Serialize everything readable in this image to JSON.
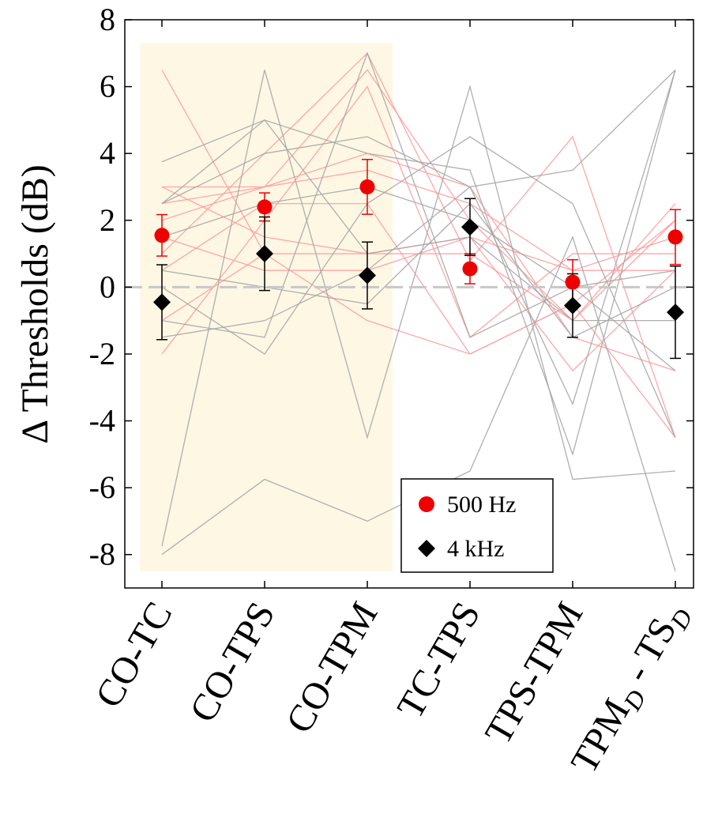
{
  "chart_data": {
    "type": "scatter",
    "ylabel": "Δ Thresholds (dB)",
    "ylim": [
      -9,
      8
    ],
    "yticks": [
      -8,
      -6,
      -4,
      -2,
      0,
      2,
      4,
      6,
      8
    ],
    "grid": false,
    "legend_position": "bottom-right",
    "categories": [
      {
        "main": "CO-TC",
        "sub": "",
        "tail": "",
        "sub2": ""
      },
      {
        "main": "CO-TPS",
        "sub": "",
        "tail": "",
        "sub2": ""
      },
      {
        "main": "CO-TPM",
        "sub": "",
        "tail": "",
        "sub2": ""
      },
      {
        "main": "TC-TPS",
        "sub": "",
        "tail": "",
        "sub2": ""
      },
      {
        "main": "TPS-TPM",
        "sub": "",
        "tail": "",
        "sub2": ""
      },
      {
        "main": "TPM",
        "sub": "D",
        "tail": " - TS",
        "sub2": "D"
      }
    ],
    "highlight_range": {
      "from_category": "CO-TC",
      "to_category": "CO-TPM",
      "y": [
        -8.5,
        7.3
      ],
      "color": "#fdf7e4"
    },
    "zero_line": {
      "y": 0,
      "color": "#c8c8c8"
    },
    "series": [
      {
        "name": "500 Hz",
        "marker": "circle",
        "color": "#ee0000",
        "errbar_color": "#ee0000",
        "mean": [
          1.55,
          2.4,
          3.0,
          0.55,
          0.15,
          1.5
        ],
        "err": [
          0.62,
          0.42,
          0.82,
          0.45,
          0.67,
          0.82
        ],
        "individual_color": "#ff9c9c",
        "individual": [
          [
            1.0,
            4.0,
            7.0,
            0.8,
            4.5,
            -4.5
          ],
          [
            2.0,
            3.0,
            6.5,
            2.0,
            -1.0,
            2.5
          ],
          [
            3.0,
            3.0,
            4.0,
            3.0,
            -1.5,
            -2.5
          ],
          [
            0.5,
            2.5,
            2.5,
            -2.0,
            -0.5,
            2.0
          ],
          [
            -2.0,
            2.0,
            6.0,
            -1.5,
            1.0,
            1.0
          ],
          [
            1.5,
            0.5,
            0.5,
            1.5,
            -2.5,
            0.5
          ],
          [
            6.5,
            1.0,
            -1.0,
            -2.0,
            -0.5,
            -4.5
          ],
          [
            3.0,
            1.5,
            1.0,
            1.0,
            -1.0,
            2.0
          ],
          [
            2.5,
            3.0,
            3.5,
            2.5,
            0.5,
            1.5
          ],
          [
            -1.0,
            1.0,
            1.0,
            1.5,
            0.5,
            0.5
          ]
        ]
      },
      {
        "name": "4 kHz",
        "marker": "diamond",
        "color": "#000000",
        "errbar_color": "#000000",
        "mean": [
          -0.45,
          1.0,
          0.35,
          1.8,
          -0.55,
          -0.75
        ],
        "err": [
          1.12,
          1.1,
          1.0,
          0.85,
          0.95,
          1.38
        ],
        "individual_color": "#a6a6a6",
        "individual": [
          [
            -8.0,
            -5.75,
            -7.0,
            -5.5,
            1.5,
            -8.5
          ],
          [
            -7.75,
            6.5,
            -4.5,
            6.0,
            -5.75,
            -5.5
          ],
          [
            3.75,
            5.0,
            4.0,
            3.5,
            -5.0,
            6.5
          ],
          [
            2.5,
            4.0,
            4.5,
            3.0,
            -3.5,
            6.5
          ],
          [
            0.0,
            -2.0,
            2.5,
            4.5,
            2.5,
            -4.5
          ],
          [
            -1.0,
            -1.5,
            7.0,
            -1.5,
            0.0,
            -2.5
          ],
          [
            2.5,
            5.0,
            1.0,
            1.5,
            -1.0,
            -1.0
          ],
          [
            1.5,
            2.5,
            3.0,
            2.0,
            0.0,
            0.5
          ],
          [
            -1.5,
            -1.0,
            0.5,
            3.0,
            3.5,
            6.5
          ],
          [
            0.5,
            0.0,
            -0.5,
            2.5,
            -1.5,
            0.0
          ]
        ]
      }
    ]
  }
}
